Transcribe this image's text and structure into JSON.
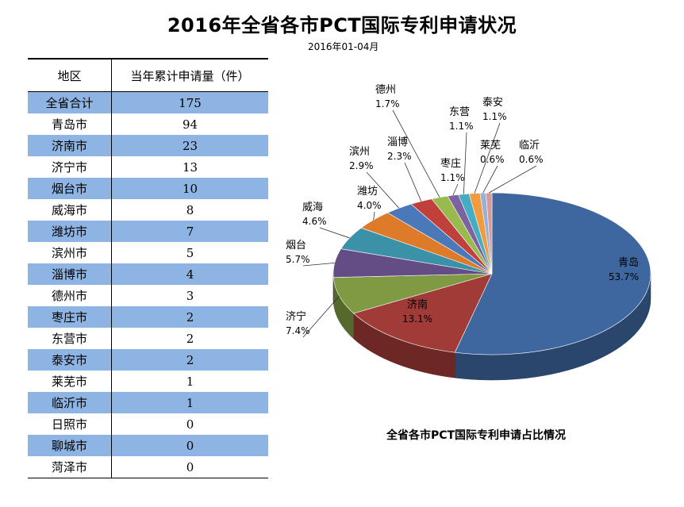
{
  "header": {
    "title": "2016年全省各市PCT国际专利申请状况",
    "subtitle": "2016年01-04月"
  },
  "table": {
    "columns": [
      "地区",
      "当年累计申请量（件）"
    ],
    "rows": [
      [
        "全省合计",
        "175"
      ],
      [
        "青岛市",
        "94"
      ],
      [
        "济南市",
        "23"
      ],
      [
        "济宁市",
        "13"
      ],
      [
        "烟台市",
        "10"
      ],
      [
        "威海市",
        "8"
      ],
      [
        "潍坊市",
        "7"
      ],
      [
        "滨州市",
        "5"
      ],
      [
        "淄博市",
        "4"
      ],
      [
        "德州市",
        "3"
      ],
      [
        "枣庄市",
        "2"
      ],
      [
        "东营市",
        "2"
      ],
      [
        "泰安市",
        "2"
      ],
      [
        "莱芜市",
        "1"
      ],
      [
        "临沂市",
        "1"
      ],
      [
        "日照市",
        "0"
      ],
      [
        "聊城市",
        "0"
      ],
      [
        "菏泽市",
        "0"
      ]
    ],
    "highlight_color": "#8eb4e3"
  },
  "chart_data": {
    "type": "pie",
    "title": "全省各市PCT国际专利申请占比情况",
    "style": "3d",
    "slices": [
      {
        "label": "青岛",
        "pct": "53.7%",
        "value": 53.7,
        "color": "#3f679f"
      },
      {
        "label": "济南",
        "pct": "13.1%",
        "value": 13.1,
        "color": "#a03b38"
      },
      {
        "label": "济宁",
        "pct": "7.4%",
        "value": 7.4,
        "color": "#7f9a42"
      },
      {
        "label": "烟台",
        "pct": "5.7%",
        "value": 5.7,
        "color": "#634d84"
      },
      {
        "label": "威海",
        "pct": "4.6%",
        "value": 4.6,
        "color": "#3a91a8"
      },
      {
        "label": "潍坊",
        "pct": "4.0%",
        "value": 4.0,
        "color": "#dd7b2a"
      },
      {
        "label": "滨州",
        "pct": "2.9%",
        "value": 2.9,
        "color": "#4a78b9"
      },
      {
        "label": "淄博",
        "pct": "2.3%",
        "value": 2.3,
        "color": "#c0403c"
      },
      {
        "label": "德州",
        "pct": "1.7%",
        "value": 1.7,
        "color": "#98ba4f"
      },
      {
        "label": "枣庄",
        "pct": "1.1%",
        "value": 1.1,
        "color": "#7d62a1"
      },
      {
        "label": "东营",
        "pct": "1.1%",
        "value": 1.1,
        "color": "#45acc4"
      },
      {
        "label": "泰安",
        "pct": "1.1%",
        "value": 1.1,
        "color": "#f29a3e"
      },
      {
        "label": "莱芜",
        "pct": "0.6%",
        "value": 0.6,
        "color": "#97b0d6"
      },
      {
        "label": "临沂",
        "pct": "0.6%",
        "value": 0.6,
        "color": "#d99997"
      }
    ]
  }
}
